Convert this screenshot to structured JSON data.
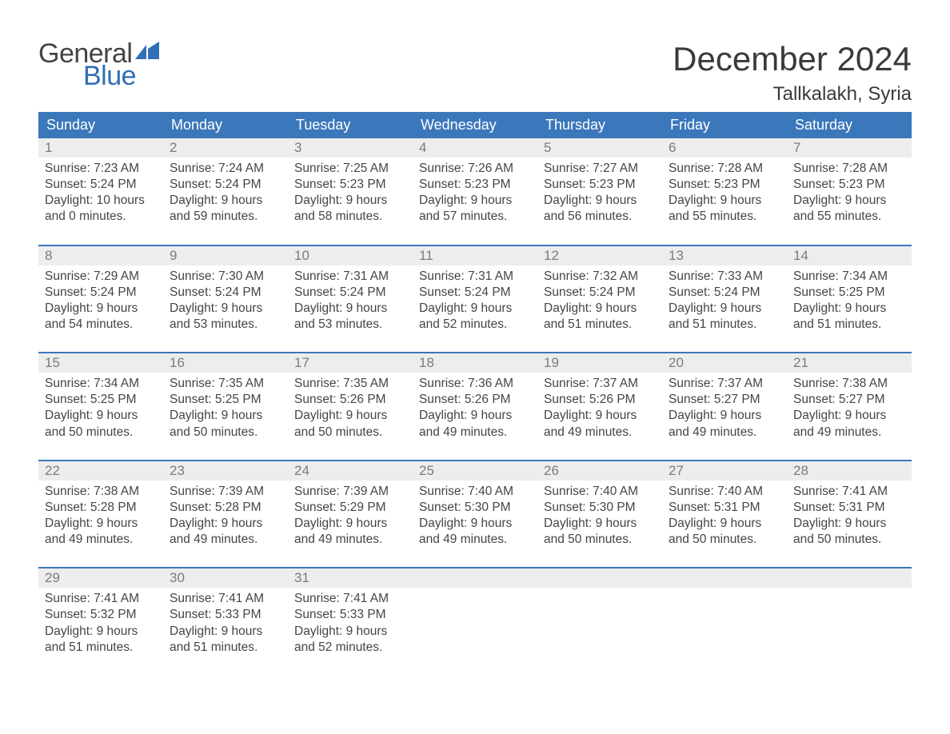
{
  "logo": {
    "text1": "General",
    "text2": "Blue",
    "shape_color": "#2f6fb5"
  },
  "title": "December 2024",
  "location": "Tallkalakh, Syria",
  "header_bg": "#3b77bb",
  "header_fg": "#ffffff",
  "daynum_bg": "#ededed",
  "daynum_fg": "#7b7b7b",
  "body_fg": "#454545",
  "week_border": "#3b77bb",
  "day_names": [
    "Sunday",
    "Monday",
    "Tuesday",
    "Wednesday",
    "Thursday",
    "Friday",
    "Saturday"
  ],
  "labels": {
    "sunrise": "Sunrise:",
    "sunset": "Sunset:",
    "daylight": "Daylight:"
  },
  "weeks": [
    [
      {
        "n": "1",
        "sr": "7:23 AM",
        "ss": "5:24 PM",
        "d1": "10 hours",
        "d2": "and 0 minutes."
      },
      {
        "n": "2",
        "sr": "7:24 AM",
        "ss": "5:24 PM",
        "d1": "9 hours",
        "d2": "and 59 minutes."
      },
      {
        "n": "3",
        "sr": "7:25 AM",
        "ss": "5:23 PM",
        "d1": "9 hours",
        "d2": "and 58 minutes."
      },
      {
        "n": "4",
        "sr": "7:26 AM",
        "ss": "5:23 PM",
        "d1": "9 hours",
        "d2": "and 57 minutes."
      },
      {
        "n": "5",
        "sr": "7:27 AM",
        "ss": "5:23 PM",
        "d1": "9 hours",
        "d2": "and 56 minutes."
      },
      {
        "n": "6",
        "sr": "7:28 AM",
        "ss": "5:23 PM",
        "d1": "9 hours",
        "d2": "and 55 minutes."
      },
      {
        "n": "7",
        "sr": "7:28 AM",
        "ss": "5:23 PM",
        "d1": "9 hours",
        "d2": "and 55 minutes."
      }
    ],
    [
      {
        "n": "8",
        "sr": "7:29 AM",
        "ss": "5:24 PM",
        "d1": "9 hours",
        "d2": "and 54 minutes."
      },
      {
        "n": "9",
        "sr": "7:30 AM",
        "ss": "5:24 PM",
        "d1": "9 hours",
        "d2": "and 53 minutes."
      },
      {
        "n": "10",
        "sr": "7:31 AM",
        "ss": "5:24 PM",
        "d1": "9 hours",
        "d2": "and 53 minutes."
      },
      {
        "n": "11",
        "sr": "7:31 AM",
        "ss": "5:24 PM",
        "d1": "9 hours",
        "d2": "and 52 minutes."
      },
      {
        "n": "12",
        "sr": "7:32 AM",
        "ss": "5:24 PM",
        "d1": "9 hours",
        "d2": "and 51 minutes."
      },
      {
        "n": "13",
        "sr": "7:33 AM",
        "ss": "5:24 PM",
        "d1": "9 hours",
        "d2": "and 51 minutes."
      },
      {
        "n": "14",
        "sr": "7:34 AM",
        "ss": "5:25 PM",
        "d1": "9 hours",
        "d2": "and 51 minutes."
      }
    ],
    [
      {
        "n": "15",
        "sr": "7:34 AM",
        "ss": "5:25 PM",
        "d1": "9 hours",
        "d2": "and 50 minutes."
      },
      {
        "n": "16",
        "sr": "7:35 AM",
        "ss": "5:25 PM",
        "d1": "9 hours",
        "d2": "and 50 minutes."
      },
      {
        "n": "17",
        "sr": "7:35 AM",
        "ss": "5:26 PM",
        "d1": "9 hours",
        "d2": "and 50 minutes."
      },
      {
        "n": "18",
        "sr": "7:36 AM",
        "ss": "5:26 PM",
        "d1": "9 hours",
        "d2": "and 49 minutes."
      },
      {
        "n": "19",
        "sr": "7:37 AM",
        "ss": "5:26 PM",
        "d1": "9 hours",
        "d2": "and 49 minutes."
      },
      {
        "n": "20",
        "sr": "7:37 AM",
        "ss": "5:27 PM",
        "d1": "9 hours",
        "d2": "and 49 minutes."
      },
      {
        "n": "21",
        "sr": "7:38 AM",
        "ss": "5:27 PM",
        "d1": "9 hours",
        "d2": "and 49 minutes."
      }
    ],
    [
      {
        "n": "22",
        "sr": "7:38 AM",
        "ss": "5:28 PM",
        "d1": "9 hours",
        "d2": "and 49 minutes."
      },
      {
        "n": "23",
        "sr": "7:39 AM",
        "ss": "5:28 PM",
        "d1": "9 hours",
        "d2": "and 49 minutes."
      },
      {
        "n": "24",
        "sr": "7:39 AM",
        "ss": "5:29 PM",
        "d1": "9 hours",
        "d2": "and 49 minutes."
      },
      {
        "n": "25",
        "sr": "7:40 AM",
        "ss": "5:30 PM",
        "d1": "9 hours",
        "d2": "and 49 minutes."
      },
      {
        "n": "26",
        "sr": "7:40 AM",
        "ss": "5:30 PM",
        "d1": "9 hours",
        "d2": "and 50 minutes."
      },
      {
        "n": "27",
        "sr": "7:40 AM",
        "ss": "5:31 PM",
        "d1": "9 hours",
        "d2": "and 50 minutes."
      },
      {
        "n": "28",
        "sr": "7:41 AM",
        "ss": "5:31 PM",
        "d1": "9 hours",
        "d2": "and 50 minutes."
      }
    ],
    [
      {
        "n": "29",
        "sr": "7:41 AM",
        "ss": "5:32 PM",
        "d1": "9 hours",
        "d2": "and 51 minutes."
      },
      {
        "n": "30",
        "sr": "7:41 AM",
        "ss": "5:33 PM",
        "d1": "9 hours",
        "d2": "and 51 minutes."
      },
      {
        "n": "31",
        "sr": "7:41 AM",
        "ss": "5:33 PM",
        "d1": "9 hours",
        "d2": "and 52 minutes."
      },
      null,
      null,
      null,
      null
    ]
  ]
}
